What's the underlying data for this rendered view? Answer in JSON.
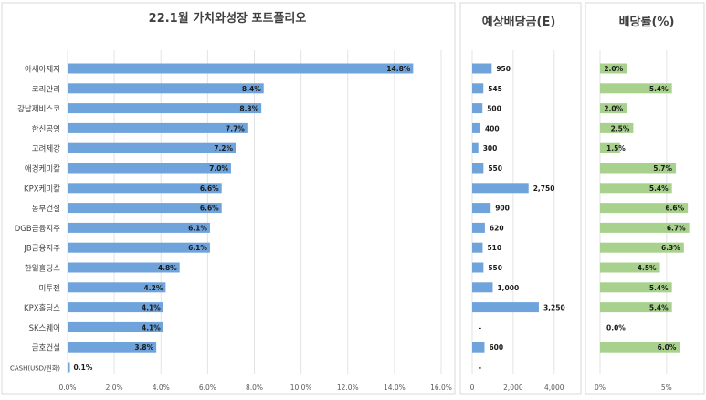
{
  "chart_data": [
    {
      "type": "bar",
      "orientation": "horizontal",
      "title": "22.1월 가치와성장 포트폴리오",
      "categories": [
        "아세아제지",
        "코리안리",
        "강남제비스코",
        "한신공영",
        "고려제강",
        "애경케미칼",
        "KPX케미칼",
        "동부건설",
        "DGB금융지주",
        "JB금융지주",
        "한일홀딩스",
        "미투젠",
        "KPX홀딩스",
        "SK스퀘어",
        "금호건설",
        "CASH(USD/원화)"
      ],
      "values": [
        14.8,
        8.4,
        8.3,
        7.7,
        7.2,
        7.0,
        6.6,
        6.6,
        6.1,
        6.1,
        4.8,
        4.2,
        4.1,
        4.1,
        3.8,
        0.1
      ],
      "value_labels": [
        "14.8%",
        "8.4%",
        "8.3%",
        "7.7%",
        "7.2%",
        "7.0%",
        "6.6%",
        "6.6%",
        "6.1%",
        "6.1%",
        "4.8%",
        "4.2%",
        "4.1%",
        "4.1%",
        "3.8%",
        "0.1%"
      ],
      "xlim": [
        0,
        16
      ],
      "x_ticks": [
        "0.0%",
        "2.0%",
        "4.0%",
        "6.0%",
        "8.0%",
        "10.0%",
        "12.0%",
        "14.0%",
        "16.0%"
      ],
      "grid": true,
      "color": "#6fa3dc"
    },
    {
      "type": "bar",
      "orientation": "horizontal",
      "title": "예상배당금(E)",
      "categories": [
        "아세아제지",
        "코리안리",
        "강남제비스코",
        "한신공영",
        "고려제강",
        "애경케미칼",
        "KPX케미칼",
        "동부건설",
        "DGB금융지주",
        "JB금융지주",
        "한일홀딩스",
        "미투젠",
        "KPX홀딩스",
        "SK스퀘어",
        "금호건설",
        "CASH(USD/원화)"
      ],
      "values": [
        950,
        545,
        500,
        400,
        300,
        550,
        2750,
        900,
        620,
        510,
        550,
        1000,
        3250,
        0,
        600,
        0
      ],
      "value_labels": [
        "950",
        "545",
        "500",
        "400",
        "300",
        "550",
        "2,750",
        "900",
        "620",
        "510",
        "550",
        "1,000",
        "3,250",
        "-",
        "600",
        "-"
      ],
      "xlim": [
        0,
        4500
      ],
      "x_ticks": [
        "0",
        "2,000",
        "4,000"
      ],
      "grid": true,
      "color": "#6fa3dc"
    },
    {
      "type": "bar",
      "orientation": "horizontal",
      "title": "배당률(%)",
      "categories": [
        "아세아제지",
        "코리안리",
        "강남제비스코",
        "한신공영",
        "고려제강",
        "애경케미칼",
        "KPX케미칼",
        "동부건설",
        "DGB금융지주",
        "JB금융지주",
        "한일홀딩스",
        "미투젠",
        "KPX홀딩스",
        "SK스퀘어",
        "금호건설",
        "CASH(USD/원화)"
      ],
      "values": [
        2.0,
        5.4,
        2.0,
        2.5,
        1.5,
        5.7,
        5.4,
        6.6,
        6.7,
        6.3,
        4.5,
        5.4,
        5.4,
        0.0,
        6.0,
        null
      ],
      "value_labels": [
        "2.0%",
        "5.4%",
        "2.0%",
        "2.5%",
        "1.5%",
        "5.7%",
        "5.4%",
        "6.6%",
        "6.7%",
        "6.3%",
        "4.5%",
        "5.4%",
        "5.4%",
        "0.0%",
        "6.0%",
        ""
      ],
      "xlim": [
        0,
        7
      ],
      "x_ticks": [
        "0%",
        "5%"
      ],
      "grid": true,
      "color": "#a9d18e"
    }
  ]
}
